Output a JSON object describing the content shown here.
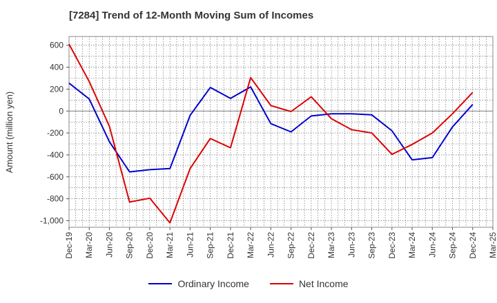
{
  "chart_data": {
    "type": "line",
    "title": "[7284]  Trend of 12-Month Moving Sum of Incomes",
    "xlabel": "",
    "ylabel": "Amount (million yen)",
    "ylim": [
      -1060,
      680
    ],
    "yticks": [
      600,
      400,
      200,
      0,
      -200,
      -400,
      -600,
      -800,
      -1000
    ],
    "ytick_labels": [
      "600",
      "400",
      "200",
      "0",
      "-200",
      "-400",
      "-600",
      "-800",
      "-1,000"
    ],
    "categories": [
      "Dec-19",
      "Mar-20",
      "Jun-20",
      "Sep-20",
      "Dec-20",
      "Mar-21",
      "Jun-21",
      "Sep-21",
      "Dec-21",
      "Mar-22",
      "Jun-22",
      "Sep-22",
      "Dec-22",
      "Mar-23",
      "Jun-23",
      "Sep-23",
      "Dec-23",
      "Mar-24",
      "Jun-24",
      "Sep-24",
      "Dec-24",
      "Mar-25"
    ],
    "grid": true,
    "legend_position": "bottom",
    "series": [
      {
        "name": "Ordinary Income",
        "color": "#0000cc",
        "values": [
          255,
          110,
          -280,
          -555,
          -535,
          -525,
          -40,
          215,
          115,
          220,
          -115,
          -190,
          -45,
          -25,
          -25,
          -35,
          -180,
          -445,
          -425,
          -145,
          60,
          null
        ]
      },
      {
        "name": "Net Income",
        "color": "#dd0000",
        "values": [
          610,
          270,
          -140,
          -830,
          -795,
          -1020,
          -525,
          -250,
          -335,
          305,
          50,
          -5,
          130,
          -70,
          -170,
          -200,
          -395,
          -305,
          -200,
          -25,
          170,
          null
        ]
      }
    ]
  }
}
